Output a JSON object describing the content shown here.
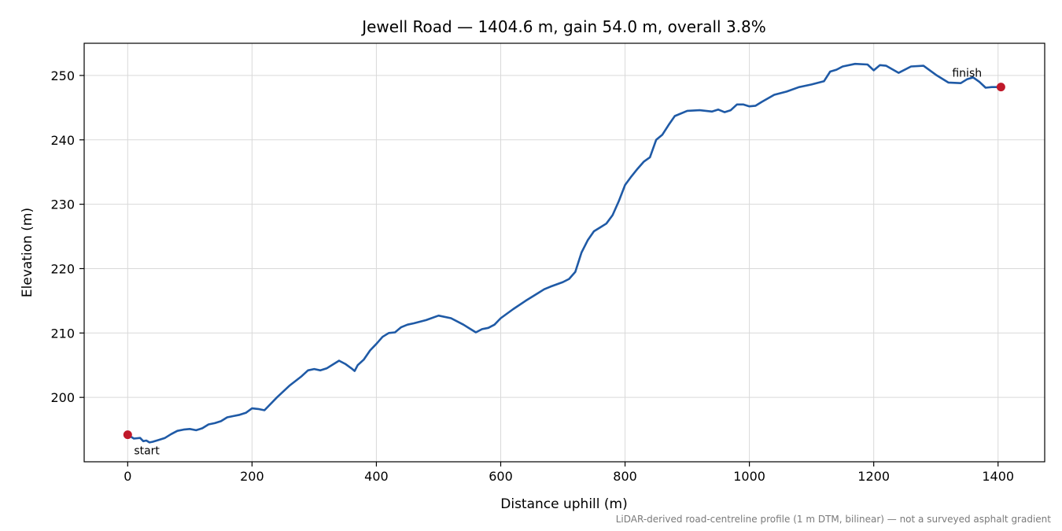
{
  "chart_data": {
    "type": "line",
    "title": "Jewell Road — 1404.6 m, gain 54.0 m, overall 3.8%",
    "xlabel": "Distance uphill (m)",
    "ylabel": "Elevation (m)",
    "footnote": "LiDAR-derived road-centreline profile (1 m DTM, bilinear) — not a surveyed asphalt gradient",
    "xlim": [
      -70,
      1475
    ],
    "ylim": [
      190,
      255
    ],
    "xticks": [
      0,
      200,
      400,
      600,
      800,
      1000,
      1200,
      1400
    ],
    "yticks": [
      200,
      210,
      220,
      230,
      240,
      250
    ],
    "grid": true,
    "line_color": "#1f5aa6",
    "marker_color": "#c0192a",
    "series": [
      {
        "x": [
          0,
          10,
          20,
          25,
          30,
          35,
          40,
          50,
          60,
          70,
          80,
          90,
          100,
          110,
          120,
          130,
          140,
          150,
          160,
          170,
          180,
          190,
          200,
          210,
          220,
          240,
          260,
          280,
          290,
          300,
          310,
          320,
          330,
          340,
          350,
          360,
          365,
          370,
          380,
          390,
          400,
          410,
          420,
          430,
          440,
          450,
          460,
          480,
          500,
          520,
          540,
          550,
          560,
          570,
          580,
          590,
          600,
          620,
          640,
          660,
          670,
          680,
          700,
          710,
          720,
          730,
          740,
          750,
          760,
          770,
          780,
          790,
          800,
          810,
          820,
          830,
          840,
          850,
          860,
          870,
          880,
          900,
          920,
          940,
          950,
          960,
          970,
          980,
          990,
          1000,
          1010,
          1020,
          1040,
          1060,
          1080,
          1100,
          1120,
          1130,
          1140,
          1150,
          1170,
          1190,
          1200,
          1210,
          1220,
          1240,
          1260,
          1280,
          1300,
          1320,
          1340,
          1350,
          1360,
          1370,
          1380,
          1390,
          1404.6
        ],
        "y": [
          194.2,
          193.6,
          193.7,
          193.2,
          193.3,
          193.0,
          193.1,
          193.4,
          193.7,
          194.3,
          194.8,
          195.0,
          195.1,
          194.9,
          195.2,
          195.8,
          196.0,
          196.3,
          196.9,
          197.1,
          197.3,
          197.6,
          198.3,
          198.2,
          198.0,
          200.0,
          201.8,
          203.3,
          204.2,
          204.4,
          204.2,
          204.5,
          205.1,
          205.7,
          205.2,
          204.5,
          204.1,
          205.0,
          205.9,
          207.3,
          208.3,
          209.4,
          210.0,
          210.1,
          210.9,
          211.3,
          211.5,
          212.0,
          212.7,
          212.3,
          211.3,
          210.7,
          210.1,
          210.6,
          210.8,
          211.3,
          212.3,
          213.7,
          215.0,
          216.2,
          216.8,
          217.2,
          217.9,
          218.4,
          219.5,
          222.5,
          224.4,
          225.8,
          226.4,
          227.0,
          228.3,
          230.5,
          233.0,
          234.3,
          235.5,
          236.6,
          237.3,
          240.0,
          240.8,
          242.3,
          243.7,
          244.5,
          244.6,
          244.4,
          244.7,
          244.3,
          244.6,
          245.5,
          245.5,
          245.2,
          245.3,
          245.9,
          247.0,
          247.5,
          248.2,
          248.6,
          249.1,
          250.6,
          250.9,
          251.4,
          251.8,
          251.7,
          250.8,
          251.6,
          251.5,
          250.4,
          251.4,
          251.5,
          250.1,
          248.9,
          248.8,
          249.4,
          249.7,
          249.0,
          248.1,
          248.2,
          248.2
        ]
      }
    ],
    "annotations": [
      {
        "text": "start",
        "x": 0,
        "y": 194.2
      },
      {
        "text": "finish",
        "x": 1404.6,
        "y": 248.2
      }
    ]
  }
}
